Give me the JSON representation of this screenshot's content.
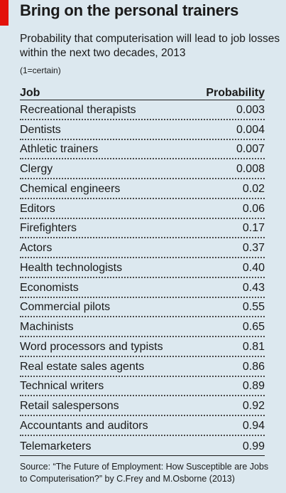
{
  "chart_data": {
    "type": "table",
    "title": "Bring on the personal trainers",
    "subtitle": "Probability that computerisation will lead to job losses within the next two decades, 2013",
    "note": "(1=certain)",
    "columns": [
      "Job",
      "Probability"
    ],
    "rows": [
      {
        "job": "Recreational therapists",
        "probability": "0.003"
      },
      {
        "job": "Dentists",
        "probability": "0.004"
      },
      {
        "job": "Athletic trainers",
        "probability": "0.007"
      },
      {
        "job": "Clergy",
        "probability": "0.008"
      },
      {
        "job": "Chemical engineers",
        "probability": "0.02"
      },
      {
        "job": "Editors",
        "probability": "0.06"
      },
      {
        "job": "Firefighters",
        "probability": "0.17"
      },
      {
        "job": "Actors",
        "probability": "0.37"
      },
      {
        "job": "Health technologists",
        "probability": "0.40"
      },
      {
        "job": "Economists",
        "probability": "0.43"
      },
      {
        "job": "Commercial pilots",
        "probability": "0.55"
      },
      {
        "job": "Machinists",
        "probability": "0.65"
      },
      {
        "job": "Word processors and typists",
        "probability": "0.81"
      },
      {
        "job": "Real estate sales agents",
        "probability": "0.86"
      },
      {
        "job": "Technical writers",
        "probability": "0.89"
      },
      {
        "job": "Retail salespersons",
        "probability": "0.92"
      },
      {
        "job": "Accountants and auditors",
        "probability": "0.94"
      },
      {
        "job": "Telemarketers",
        "probability": "0.99"
      }
    ],
    "source": "Source: “The Future of Employment: How Susceptible are Jobs to Computerisation?” by C.Frey and M.Osborne (2013)"
  },
  "colors": {
    "background": "#dce8ef",
    "accent": "#e3120b",
    "text": "#1a1a1a"
  }
}
